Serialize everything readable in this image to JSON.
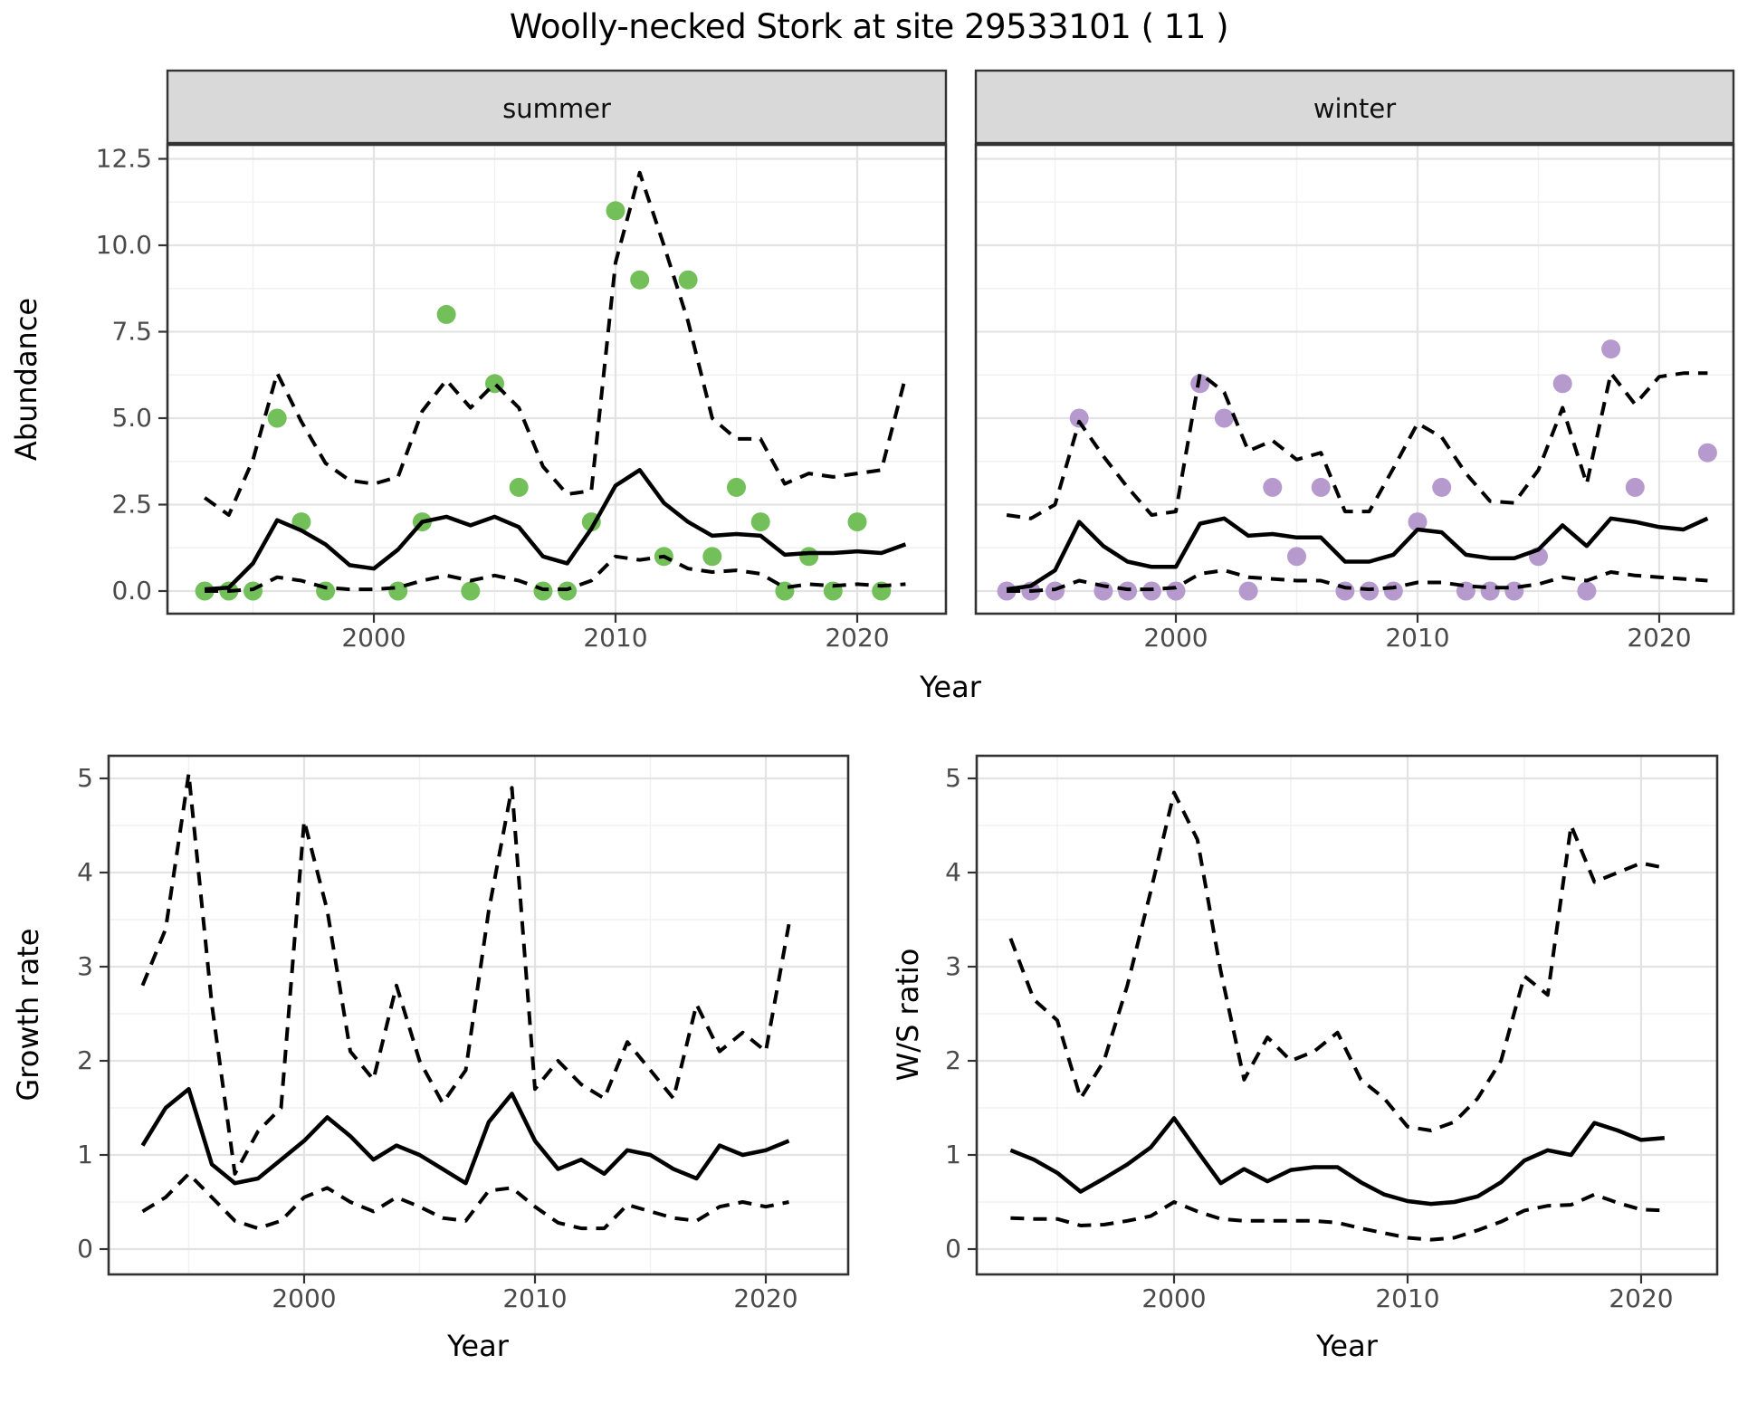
{
  "title": "Woolly-necked Stork at site 29533101 ( 11 )",
  "colors": {
    "summer_point": "#73bf59",
    "winter_point": "#b69ace",
    "line": "#000000",
    "grid_major": "#e3e3e3",
    "grid_minor": "#f1f1f1",
    "strip_bg": "#d9d9d9",
    "panel_border": "#333333",
    "tick_text": "#4a4a4a",
    "axis_text": "#000000"
  },
  "chart_data": [
    {
      "id": "abundance",
      "type": "line",
      "xlabel": "Year",
      "ylabel": "Abundance",
      "ylim": [
        0,
        12.5
      ],
      "yticks": [
        0,
        2.5,
        5,
        7.5,
        10,
        12.5
      ],
      "ytick_labels": [
        "0.0",
        "2.5",
        "5.0",
        "7.5",
        "10.0",
        "12.5"
      ],
      "xticks": [
        2000,
        2010,
        2020
      ],
      "xtick_minor": [
        1995,
        2005,
        2015,
        2025
      ],
      "ytick_minor": [
        1.25,
        3.75,
        6.25,
        8.75,
        11.25
      ],
      "grid": true,
      "legend": "none",
      "facets": [
        {
          "label": "summer",
          "point_color_key": "summer_point",
          "years": [
            1993,
            1994,
            1995,
            1996,
            1997,
            1998,
            1999,
            2000,
            2001,
            2002,
            2003,
            2004,
            2005,
            2006,
            2007,
            2008,
            2009,
            2010,
            2011,
            2012,
            2013,
            2014,
            2015,
            2016,
            2017,
            2018,
            2019,
            2020,
            2021,
            2022
          ],
          "series": [
            {
              "name": "median",
              "style": "solid",
              "values": [
                0.05,
                0.1,
                0.8,
                2.05,
                1.75,
                1.35,
                0.75,
                0.65,
                1.2,
                2.0,
                2.15,
                1.9,
                2.15,
                1.85,
                1.0,
                0.8,
                1.8,
                3.05,
                3.5,
                2.55,
                2.0,
                1.6,
                1.65,
                1.6,
                1.05,
                1.1,
                1.1,
                1.15,
                1.1,
                1.35
              ]
            },
            {
              "name": "upper_95ci",
              "style": "dashed",
              "values": [
                2.7,
                2.2,
                3.8,
                6.3,
                4.9,
                3.7,
                3.2,
                3.1,
                3.3,
                5.2,
                6.1,
                5.3,
                6.0,
                5.3,
                3.6,
                2.8,
                2.9,
                9.5,
                12.1,
                10.0,
                7.8,
                5.0,
                4.4,
                4.4,
                3.1,
                3.4,
                3.3,
                3.4,
                3.5,
                6.2
              ]
            },
            {
              "name": "lower_95ci",
              "style": "dashed",
              "values": [
                0.0,
                0.0,
                0.05,
                0.4,
                0.3,
                0.1,
                0.05,
                0.05,
                0.1,
                0.3,
                0.45,
                0.3,
                0.45,
                0.3,
                0.05,
                0.05,
                0.3,
                1.0,
                0.9,
                1.0,
                0.65,
                0.55,
                0.6,
                0.5,
                0.1,
                0.2,
                0.15,
                0.2,
                0.15,
                0.2
              ]
            }
          ],
          "observations": {
            "years": [
              1993,
              1994,
              1995,
              1996,
              1997,
              1998,
              2001,
              2002,
              2003,
              2004,
              2005,
              2006,
              2007,
              2008,
              2009,
              2010,
              2011,
              2012,
              2013,
              2014,
              2015,
              2016,
              2017,
              2018,
              2019,
              2020,
              2021
            ],
            "values": [
              0,
              0,
              0,
              5,
              2,
              0,
              0,
              2,
              8,
              0,
              6,
              3,
              0,
              0,
              2,
              11,
              9,
              1,
              9,
              1,
              3,
              2,
              0,
              1,
              0,
              2,
              0
            ]
          }
        },
        {
          "label": "winter",
          "point_color_key": "winter_point",
          "years": [
            1993,
            1994,
            1995,
            1996,
            1997,
            1998,
            1999,
            2000,
            2001,
            2002,
            2003,
            2004,
            2005,
            2006,
            2007,
            2008,
            2009,
            2010,
            2011,
            2012,
            2013,
            2014,
            2015,
            2016,
            2017,
            2018,
            2019,
            2020,
            2021,
            2022
          ],
          "series": [
            {
              "name": "median",
              "style": "solid",
              "values": [
                0.05,
                0.15,
                0.6,
                2.0,
                1.3,
                0.85,
                0.7,
                0.7,
                1.95,
                2.1,
                1.6,
                1.65,
                1.55,
                1.55,
                0.85,
                0.85,
                1.05,
                1.78,
                1.7,
                1.05,
                0.95,
                0.95,
                1.2,
                1.9,
                1.3,
                2.1,
                2.0,
                1.85,
                1.78,
                2.1
              ]
            },
            {
              "name": "upper_95ci",
              "style": "dashed",
              "values": [
                2.2,
                2.1,
                2.5,
                4.9,
                3.9,
                3.0,
                2.2,
                2.3,
                6.3,
                5.75,
                4.05,
                4.35,
                3.8,
                4.0,
                2.3,
                2.3,
                3.55,
                4.85,
                4.45,
                3.4,
                2.6,
                2.55,
                3.5,
                5.3,
                3.1,
                6.3,
                5.4,
                6.2,
                6.3,
                6.3
              ]
            },
            {
              "name": "lower_95ci",
              "style": "dashed",
              "values": [
                0.0,
                0.0,
                0.05,
                0.3,
                0.15,
                0.05,
                0.05,
                0.1,
                0.5,
                0.6,
                0.4,
                0.35,
                0.3,
                0.3,
                0.1,
                0.05,
                0.1,
                0.25,
                0.25,
                0.15,
                0.1,
                0.1,
                0.2,
                0.4,
                0.3,
                0.55,
                0.45,
                0.4,
                0.35,
                0.3
              ]
            }
          ],
          "observations": {
            "years": [
              1993,
              1994,
              1995,
              1996,
              1997,
              1998,
              1999,
              2000,
              2001,
              2002,
              2003,
              2004,
              2005,
              2006,
              2007,
              2008,
              2009,
              2010,
              2011,
              2012,
              2013,
              2014,
              2015,
              2016,
              2017,
              2018,
              2019,
              2022
            ],
            "values": [
              0,
              0,
              0,
              5,
              0,
              0,
              0,
              0,
              6,
              5,
              0,
              3,
              1,
              3,
              0,
              0,
              0,
              2,
              3,
              0,
              0,
              0,
              1,
              6,
              0,
              7,
              3,
              4
            ]
          }
        }
      ]
    },
    {
      "id": "growth_rate",
      "type": "line",
      "xlabel": "Year",
      "ylabel": "Growth rate",
      "ylim": [
        0,
        5
      ],
      "yticks": [
        0,
        1,
        2,
        3,
        4,
        5
      ],
      "ytick_labels": [
        "0",
        "1",
        "2",
        "3",
        "4",
        "5"
      ],
      "xticks": [
        2000,
        2010,
        2020
      ],
      "xtick_minor": [
        1995,
        2005,
        2015,
        2025
      ],
      "ytick_minor": [
        0.5,
        1.5,
        2.5,
        3.5,
        4.5
      ],
      "grid": true,
      "years": [
        1993,
        1994,
        1995,
        1996,
        1997,
        1998,
        1999,
        2000,
        2001,
        2002,
        2003,
        2004,
        2005,
        2006,
        2007,
        2008,
        2009,
        2010,
        2011,
        2012,
        2013,
        2014,
        2015,
        2016,
        2017,
        2018,
        2019,
        2020,
        2021
      ],
      "series": [
        {
          "name": "median",
          "style": "solid",
          "values": [
            1.1,
            1.5,
            1.7,
            0.9,
            0.7,
            0.75,
            0.95,
            1.15,
            1.4,
            1.2,
            0.95,
            1.1,
            1.0,
            0.85,
            0.7,
            1.35,
            1.65,
            1.15,
            0.85,
            0.95,
            0.8,
            1.05,
            1.0,
            0.85,
            0.75,
            1.1,
            1.0,
            1.05,
            1.15
          ]
        },
        {
          "name": "upper_95ci",
          "style": "dashed",
          "values": [
            2.8,
            3.4,
            5.05,
            2.6,
            0.8,
            1.25,
            1.5,
            4.55,
            3.6,
            2.1,
            1.8,
            2.8,
            2.0,
            1.55,
            1.9,
            3.6,
            4.9,
            1.7,
            2.0,
            1.75,
            1.6,
            2.2,
            1.9,
            1.6,
            2.6,
            2.1,
            2.3,
            2.1,
            3.45
          ]
        },
        {
          "name": "lower_95ci",
          "style": "dashed",
          "values": [
            0.4,
            0.55,
            0.8,
            0.55,
            0.3,
            0.22,
            0.3,
            0.55,
            0.65,
            0.5,
            0.4,
            0.55,
            0.45,
            0.33,
            0.3,
            0.62,
            0.65,
            0.45,
            0.28,
            0.22,
            0.22,
            0.47,
            0.4,
            0.33,
            0.3,
            0.45,
            0.5,
            0.45,
            0.5
          ]
        }
      ]
    },
    {
      "id": "ws_ratio",
      "type": "line",
      "xlabel": "Year",
      "ylabel": "W/S ratio",
      "ylim": [
        0,
        5
      ],
      "yticks": [
        0,
        1,
        2,
        3,
        4,
        5
      ],
      "ytick_labels": [
        "0",
        "1",
        "2",
        "3",
        "4",
        "5"
      ],
      "xticks": [
        2000,
        2010,
        2020
      ],
      "xtick_minor": [
        1995,
        2005,
        2015,
        2025
      ],
      "ytick_minor": [
        0.5,
        1.5,
        2.5,
        3.5,
        4.5
      ],
      "grid": true,
      "years": [
        1993,
        1994,
        1995,
        1996,
        1997,
        1998,
        1999,
        2000,
        2001,
        2002,
        2003,
        2004,
        2005,
        2006,
        2007,
        2008,
        2009,
        2010,
        2011,
        2012,
        2013,
        2014,
        2015,
        2016,
        2017,
        2018,
        2019,
        2020,
        2021
      ],
      "series": [
        {
          "name": "median",
          "style": "solid",
          "values": [
            1.05,
            0.95,
            0.81,
            0.61,
            0.75,
            0.9,
            1.08,
            1.39,
            1.04,
            0.7,
            0.85,
            0.72,
            0.84,
            0.87,
            0.87,
            0.71,
            0.58,
            0.51,
            0.48,
            0.5,
            0.56,
            0.71,
            0.94,
            1.05,
            1.0,
            1.34,
            1.26,
            1.16,
            1.18
          ]
        },
        {
          "name": "upper_95ci",
          "style": "dashed",
          "values": [
            3.3,
            2.65,
            2.43,
            1.6,
            2.0,
            2.8,
            3.8,
            4.85,
            4.35,
            2.95,
            1.8,
            2.25,
            2.0,
            2.1,
            2.3,
            1.8,
            1.6,
            1.3,
            1.26,
            1.35,
            1.6,
            2.0,
            2.9,
            2.7,
            4.5,
            3.9,
            4.0,
            4.1,
            4.05
          ]
        },
        {
          "name": "lower_95ci",
          "style": "dashed",
          "values": [
            0.33,
            0.32,
            0.32,
            0.25,
            0.26,
            0.3,
            0.35,
            0.5,
            0.4,
            0.32,
            0.3,
            0.3,
            0.3,
            0.3,
            0.28,
            0.22,
            0.17,
            0.12,
            0.1,
            0.12,
            0.2,
            0.29,
            0.41,
            0.46,
            0.47,
            0.58,
            0.49,
            0.42,
            0.41
          ]
        }
      ]
    }
  ]
}
